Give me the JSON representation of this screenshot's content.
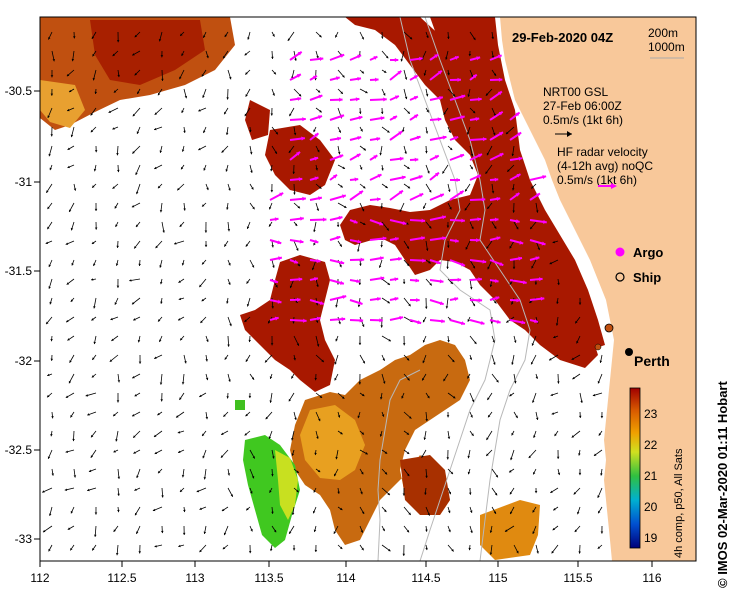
{
  "map": {
    "date_title": "29-Feb-2020 04Z",
    "isobath_legend": [
      "200m",
      "1000m"
    ],
    "nrt_lines": [
      "NRT00 GSL",
      "27-Feb 06:00Z",
      "0.5m/s (1kt 6h)"
    ],
    "hf_lines": [
      "HF radar velocity",
      "(4-12h avg) noQC",
      "0.5m/s (1kt 6h)"
    ],
    "legend_argo": "Argo",
    "legend_ship": "Ship",
    "city": "Perth",
    "credit": "© IMOS 02-Mar-2020 01:11 Hobart",
    "colorbar_title": "4h comp, p50, All Sats",
    "colorbar_ticks": [
      "23",
      "22",
      "21",
      "20",
      "19"
    ],
    "x_ticks": [
      "112",
      "112.5",
      "113",
      "113.5",
      "114",
      "114.5",
      "115",
      "115.5",
      "116"
    ],
    "y_ticks": [
      "-30.5",
      "-31",
      "-31.5",
      "-32",
      "-32.5",
      "-33"
    ],
    "colors": {
      "land": "#f8c89a",
      "hf_arrow": "#ff00ff",
      "sst_warm": "#a81800",
      "sst_mid": "#e08a10",
      "sst_cool": "#30c020"
    }
  }
}
